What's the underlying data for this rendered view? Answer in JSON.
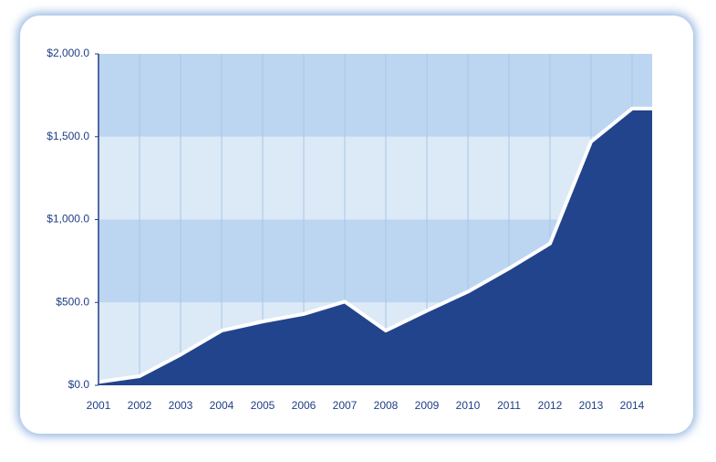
{
  "chart_data": {
    "type": "area",
    "categories": [
      "2001",
      "2002",
      "2003",
      "2004",
      "2005",
      "2006",
      "2007",
      "2008",
      "2009",
      "2010",
      "2011",
      "2012",
      "2013",
      "2014"
    ],
    "series": [
      {
        "color": "#22448c",
        "values": [
          20,
          55,
          185,
          330,
          385,
          430,
          505,
          330,
          450,
          565,
          705,
          855,
          1470,
          1670
        ]
      }
    ],
    "ylim": [
      0,
      2000
    ],
    "yticks": [
      {
        "value": 0,
        "label": "$0.0"
      },
      {
        "value": 500,
        "label": "$500.0"
      },
      {
        "value": 1000,
        "label": "$1,000.0"
      },
      {
        "value": 1500,
        "label": "$1,500.0"
      },
      {
        "value": 2000,
        "label": "$2,000.0"
      }
    ],
    "grid": true
  }
}
